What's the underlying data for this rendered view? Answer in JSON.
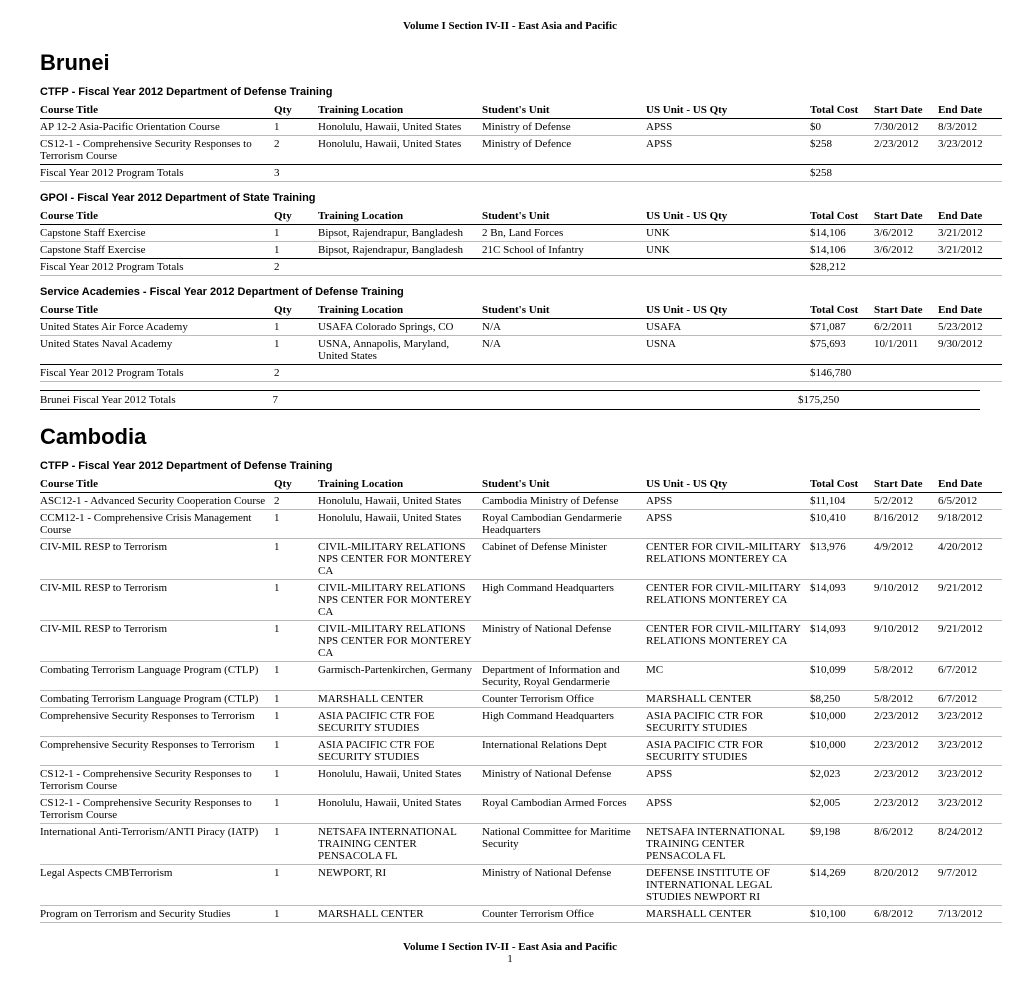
{
  "header": "Volume I Section IV-II - East Asia and Pacific",
  "footer": "Volume I Section IV-II - East Asia and Pacific",
  "page_number": "1",
  "columns": {
    "title": "Course Title",
    "qty": "Qty",
    "loc": "Training Location",
    "unit": "Student's Unit",
    "usunit": "US Unit - US Qty",
    "cost": "Total Cost",
    "start": "Start Date",
    "end": "End Date"
  },
  "countries": [
    {
      "name": "Brunei",
      "sections": [
        {
          "heading": "CTFP - Fiscal Year 2012 Department of Defense Training",
          "rows": [
            {
              "title": "AP 12-2 Asia-Pacific Orientation Course",
              "qty": "1",
              "loc": "Honolulu, Hawaii, United States",
              "unit": "Ministry of Defense",
              "usunit": "APSS",
              "cost": "$0",
              "start": "7/30/2012",
              "end": "8/3/2012"
            },
            {
              "title": "CS12-1 - Comprehensive Security Responses to Terrorism Course",
              "qty": "2",
              "loc": "Honolulu, Hawaii, United States",
              "unit": "Ministry of Defence",
              "usunit": "APSS",
              "cost": "$258",
              "start": "2/23/2012",
              "end": "3/23/2012"
            }
          ],
          "totals": {
            "label": "Fiscal Year 2012 Program Totals",
            "qty": "3",
            "cost": "$258"
          }
        },
        {
          "heading": "GPOI - Fiscal Year 2012 Department of State Training",
          "rows": [
            {
              "title": "Capstone Staff Exercise",
              "qty": "1",
              "loc": "Bipsot, Rajendrapur, Bangladesh",
              "unit": "2 Bn, Land Forces",
              "usunit": "UNK",
              "cost": "$14,106",
              "start": "3/6/2012",
              "end": "3/21/2012"
            },
            {
              "title": "Capstone Staff Exercise",
              "qty": "1",
              "loc": "Bipsot, Rajendrapur, Bangladesh",
              "unit": "21C School of Infantry",
              "usunit": "UNK",
              "cost": "$14,106",
              "start": "3/6/2012",
              "end": "3/21/2012"
            }
          ],
          "totals": {
            "label": "Fiscal Year 2012 Program Totals",
            "qty": "2",
            "cost": "$28,212"
          }
        },
        {
          "heading": "Service Academies - Fiscal Year 2012 Department of Defense Training",
          "rows": [
            {
              "title": "United States Air Force Academy",
              "qty": "1",
              "loc": "USAFA Colorado Springs, CO",
              "unit": "N/A",
              "usunit": "USAFA",
              "cost": "$71,087",
              "start": "6/2/2011",
              "end": "5/23/2012"
            },
            {
              "title": "United States Naval Academy",
              "qty": "1",
              "loc": "USNA, Annapolis, Maryland, United States",
              "unit": "N/A",
              "usunit": "USNA",
              "cost": "$75,693",
              "start": "10/1/2011",
              "end": "9/30/2012"
            }
          ],
          "totals": {
            "label": "Fiscal Year 2012 Program Totals",
            "qty": "2",
            "cost": "$146,780"
          }
        }
      ],
      "country_totals": {
        "label": "Brunei Fiscal Year 2012 Totals",
        "qty": "7",
        "cost": "$175,250"
      }
    },
    {
      "name": "Cambodia",
      "sections": [
        {
          "heading": "CTFP - Fiscal Year 2012 Department of Defense Training",
          "rows": [
            {
              "title": "ASC12-1 - Advanced Security Cooperation Course",
              "qty": "2",
              "loc": "Honolulu, Hawaii, United States",
              "unit": "Cambodia Ministry of Defense",
              "usunit": "APSS",
              "cost": "$11,104",
              "start": "5/2/2012",
              "end": "6/5/2012"
            },
            {
              "title": "CCM12-1 - Comprehensive Crisis Management Course",
              "qty": "1",
              "loc": "Honolulu, Hawaii, United States",
              "unit": "Royal Cambodian Gendarmerie Headquarters",
              "usunit": "APSS",
              "cost": "$10,410",
              "start": "8/16/2012",
              "end": "9/18/2012"
            },
            {
              "title": "CIV-MIL RESP to Terrorism",
              "qty": "1",
              "loc": "CIVIL-MILITARY RELATIONS NPS CENTER FOR MONTEREY CA",
              "unit": "Cabinet of Defense Minister",
              "usunit": "CENTER FOR CIVIL-MILITARY RELATIONS MONTEREY CA",
              "cost": "$13,976",
              "start": "4/9/2012",
              "end": "4/20/2012"
            },
            {
              "title": "CIV-MIL RESP to Terrorism",
              "qty": "1",
              "loc": "CIVIL-MILITARY RELATIONS NPS CENTER FOR MONTEREY CA",
              "unit": "High Command Headquarters",
              "usunit": "CENTER FOR CIVIL-MILITARY RELATIONS MONTEREY CA",
              "cost": "$14,093",
              "start": "9/10/2012",
              "end": "9/21/2012"
            },
            {
              "title": "CIV-MIL RESP to Terrorism",
              "qty": "1",
              "loc": "CIVIL-MILITARY RELATIONS NPS CENTER FOR MONTEREY CA",
              "unit": "Ministry of National Defense",
              "usunit": "CENTER FOR CIVIL-MILITARY RELATIONS MONTEREY CA",
              "cost": "$14,093",
              "start": "9/10/2012",
              "end": "9/21/2012"
            },
            {
              "title": "Combating Terrorism Language Program (CTLP)",
              "qty": "1",
              "loc": "Garmisch-Partenkirchen, Germany",
              "unit": "Department of Information and Security, Royal Gendarmerie",
              "usunit": "MC",
              "cost": "$10,099",
              "start": "5/8/2012",
              "end": "6/7/2012"
            },
            {
              "title": "Combating Terrorism Language Program (CTLP)",
              "qty": "1",
              "loc": "MARSHALL CENTER",
              "unit": "Counter Terrorism Office",
              "usunit": "MARSHALL CENTER",
              "cost": "$8,250",
              "start": "5/8/2012",
              "end": "6/7/2012"
            },
            {
              "title": "Comprehensive Security Responses to Terrorism",
              "qty": "1",
              "loc": "ASIA PACIFIC CTR FOE SECURITY STUDIES",
              "unit": "High Command Headquarters",
              "usunit": "ASIA PACIFIC CTR FOR SECURITY STUDIES",
              "cost": "$10,000",
              "start": "2/23/2012",
              "end": "3/23/2012"
            },
            {
              "title": "Comprehensive Security Responses to Terrorism",
              "qty": "1",
              "loc": "ASIA PACIFIC CTR FOE SECURITY STUDIES",
              "unit": "International Relations Dept",
              "usunit": "ASIA PACIFIC CTR FOR SECURITY STUDIES",
              "cost": "$10,000",
              "start": "2/23/2012",
              "end": "3/23/2012"
            },
            {
              "title": "CS12-1 - Comprehensive Security Responses to Terrorism Course",
              "qty": "1",
              "loc": "Honolulu, Hawaii, United States",
              "unit": "Ministry of National Defense",
              "usunit": "APSS",
              "cost": "$2,023",
              "start": "2/23/2012",
              "end": "3/23/2012"
            },
            {
              "title": "CS12-1 - Comprehensive Security Responses to Terrorism Course",
              "qty": "1",
              "loc": "Honolulu, Hawaii, United States",
              "unit": "Royal Cambodian Armed Forces",
              "usunit": "APSS",
              "cost": "$2,005",
              "start": "2/23/2012",
              "end": "3/23/2012"
            },
            {
              "title": "International Anti-Terrorism/ANTI Piracy (IATP)",
              "qty": "1",
              "loc": "NETSAFA INTERNATIONAL TRAINING CENTER PENSACOLA FL",
              "unit": "National Committee for Maritime Security",
              "usunit": "NETSAFA INTERNATIONAL TRAINING CENTER PENSACOLA FL",
              "cost": "$9,198",
              "start": "8/6/2012",
              "end": "8/24/2012"
            },
            {
              "title": "Legal Aspects CMBTerrorism",
              "qty": "1",
              "loc": "NEWPORT, RI",
              "unit": "Ministry of National Defense",
              "usunit": "DEFENSE INSTITUTE OF INTERNATIONAL LEGAL STUDIES NEWPORT RI",
              "cost": "$14,269",
              "start": "8/20/2012",
              "end": "9/7/2012"
            },
            {
              "title": "Program on Terrorism and Security Studies",
              "qty": "1",
              "loc": "MARSHALL CENTER",
              "unit": "Counter Terrorism Office",
              "usunit": "MARSHALL CENTER",
              "cost": "$10,100",
              "start": "6/8/2012",
              "end": "7/13/2012"
            }
          ]
        }
      ]
    }
  ]
}
